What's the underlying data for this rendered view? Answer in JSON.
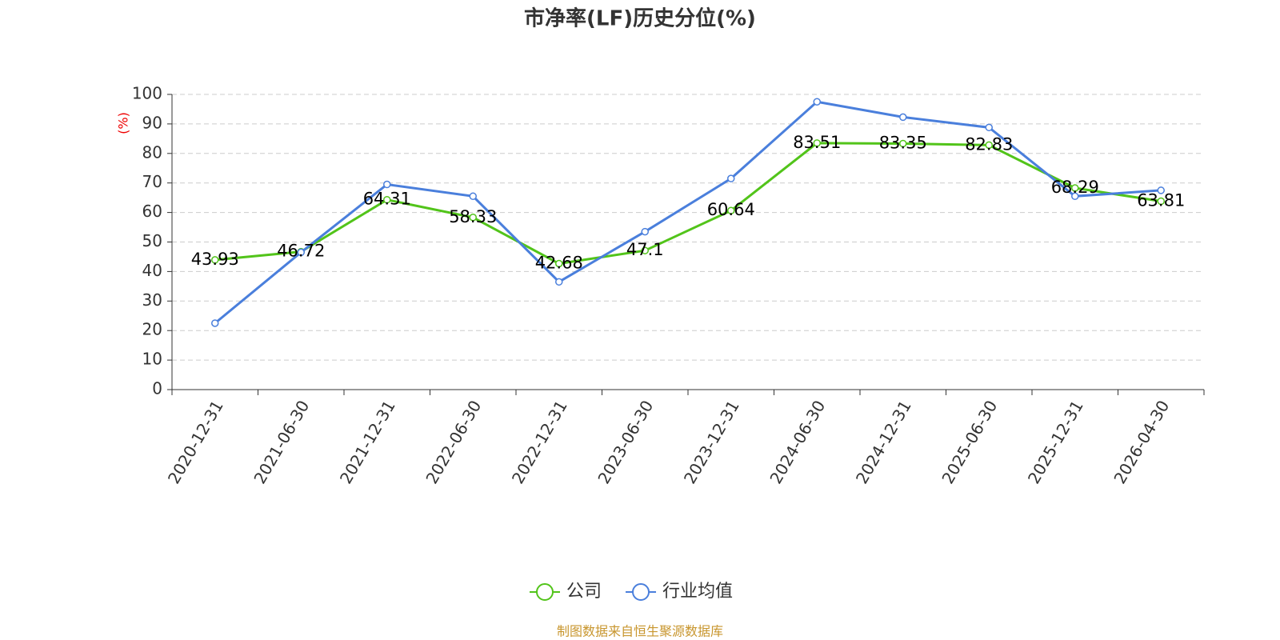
{
  "chart_data": {
    "type": "line",
    "title": "市净率(LF)历史分位(%)",
    "y_label": "(%)",
    "categories": [
      "2020-12-31",
      "2021-06-30",
      "2021-12-31",
      "2022-06-30",
      "2022-12-31",
      "2023-06-30",
      "2023-12-31",
      "2024-06-30",
      "2024-12-31",
      "2025-06-30",
      "2025-12-31",
      "2026-04-30"
    ],
    "series": [
      {
        "name": "公司",
        "color": "#52c41a",
        "values": [
          43.93,
          46.72,
          64.31,
          58.33,
          42.68,
          47.1,
          60.64,
          83.51,
          83.35,
          82.83,
          68.29,
          63.81
        ]
      },
      {
        "name": "行业均值",
        "color": "#4a7fdc",
        "values": [
          22.5,
          46.5,
          69.5,
          65.5,
          36.5,
          53.5,
          71.5,
          97.5,
          92.3,
          88.8,
          65.5,
          67.5
        ]
      }
    ],
    "ylim": [
      0,
      100
    ],
    "yticks": [
      0,
      10,
      20,
      30,
      40,
      50,
      60,
      70,
      80,
      90,
      100
    ],
    "grid": true,
    "source": "制图数据来自恒生聚源数据库"
  }
}
